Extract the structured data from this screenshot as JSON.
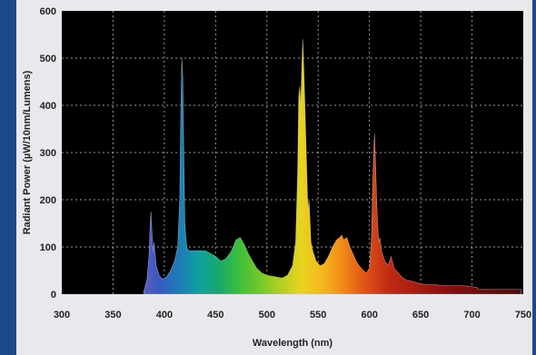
{
  "chart_data": {
    "type": "area",
    "title": "",
    "xlabel": "Wavelength (nm)",
    "ylabel": "Radiant Power (µW/10nm/Lumens)",
    "xlim": [
      300,
      750
    ],
    "ylim": [
      0,
      600
    ],
    "x_ticks": [
      "300",
      "350",
      "400",
      "450",
      "500",
      "550",
      "600",
      "650",
      "700",
      "750"
    ],
    "y_ticks": [
      "0",
      "100",
      "200",
      "300",
      "400",
      "500",
      "600"
    ],
    "grid": true,
    "legend": "none",
    "colors": {
      "plot_background": "#000000",
      "grid": "#9a9a9a",
      "frame": "#e9e9ed",
      "border": "#1b4a8a"
    },
    "series": [
      {
        "x": [
          380,
          383,
          385,
          386,
          387,
          388,
          389,
          390,
          392,
          395,
          398,
          402,
          406,
          410,
          413,
          415,
          416,
          417,
          418,
          419,
          420,
          421,
          422,
          423,
          425,
          430,
          440,
          450,
          455,
          460,
          465,
          470,
          474,
          478,
          482,
          486,
          490,
          495,
          500,
          505,
          510,
          515,
          520,
          525,
          528,
          530,
          531,
          532,
          533,
          534,
          535,
          536,
          537,
          538,
          540,
          541,
          542,
          543,
          545,
          548,
          552,
          556,
          560,
          564,
          568,
          571,
          573,
          575,
          578,
          581,
          584,
          587,
          590,
          594,
          597,
          600,
          602,
          603,
          604,
          605,
          606,
          607,
          608,
          609,
          610,
          612,
          615,
          618,
          621,
          624,
          628,
          632,
          636,
          640,
          645,
          650,
          655,
          660,
          665,
          670,
          680,
          690,
          700,
          705,
          706,
          720,
          735,
          748
        ],
        "y": [
          5,
          30,
          80,
          140,
          175,
          130,
          90,
          110,
          60,
          40,
          32,
          36,
          50,
          70,
          100,
          200,
          380,
          500,
          460,
          300,
          150,
          120,
          100,
          93,
          92,
          92,
          92,
          80,
          70,
          75,
          90,
          115,
          120,
          105,
          85,
          70,
          55,
          45,
          40,
          38,
          36,
          34,
          40,
          60,
          110,
          260,
          420,
          440,
          400,
          480,
          540,
          480,
          410,
          330,
          180,
          200,
          160,
          110,
          90,
          70,
          60,
          65,
          80,
          100,
          115,
          120,
          125,
          115,
          120,
          100,
          85,
          70,
          60,
          50,
          45,
          55,
          120,
          220,
          300,
          340,
          280,
          200,
          150,
          110,
          120,
          90,
          70,
          60,
          80,
          55,
          45,
          35,
          30,
          28,
          25,
          22,
          20,
          20,
          20,
          18,
          18,
          18,
          16,
          14,
          10,
          10,
          10,
          10
        ]
      }
    ]
  }
}
